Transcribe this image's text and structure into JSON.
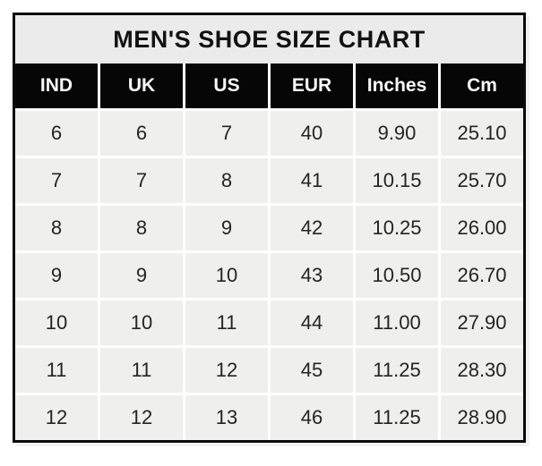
{
  "chart_data": {
    "type": "table",
    "title": "MEN'S SHOE SIZE CHART",
    "columns": [
      "IND",
      "UK",
      "US",
      "EUR",
      "Inches",
      "Cm"
    ],
    "rows": [
      [
        "6",
        "6",
        "7",
        "40",
        "9.90",
        "25.10"
      ],
      [
        "7",
        "7",
        "8",
        "41",
        "10.15",
        "25.70"
      ],
      [
        "8",
        "8",
        "9",
        "42",
        "10.25",
        "26.00"
      ],
      [
        "9",
        "9",
        "10",
        "43",
        "10.50",
        "26.70"
      ],
      [
        "10",
        "10",
        "11",
        "44",
        "11.00",
        "27.90"
      ],
      [
        "11",
        "11",
        "12",
        "45",
        "11.25",
        "28.30"
      ],
      [
        "12",
        "12",
        "13",
        "46",
        "11.25",
        "28.90"
      ]
    ],
    "layout": {
      "legend": "none",
      "grid": "white gridlines between cells",
      "header_position": "top"
    },
    "colors": {
      "border": "#0b0b0b",
      "title_bg": "#ebebeb",
      "title_text": "#121212",
      "header_bg": "#060606",
      "header_text": "#ffffff",
      "cell_bg": "#efefee",
      "cell_text": "#242424",
      "gridline": "#ffffff",
      "page_bg": "#ffffff"
    }
  }
}
